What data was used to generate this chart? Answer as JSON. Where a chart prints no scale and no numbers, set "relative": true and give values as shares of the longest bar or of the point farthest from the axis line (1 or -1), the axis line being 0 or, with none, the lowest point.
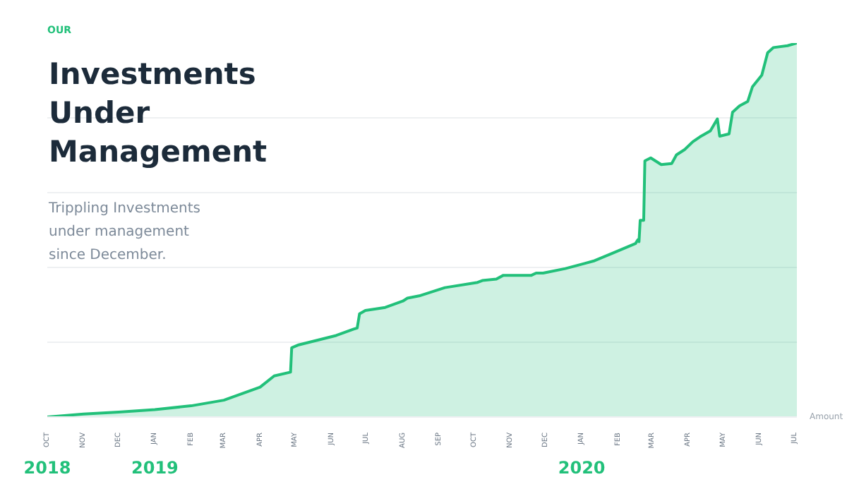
{
  "chart_data": {
    "type": "area",
    "title": "Investments Under Management",
    "subtitle": "Trippling Investments under management since December.",
    "ylabel": "Amount",
    "annotations": [
      "OUR",
      "2018",
      "2019",
      "2020"
    ],
    "relative": true,
    "grid": "y",
    "xlim": [
      "2018-10-01",
      "2020-07-03"
    ],
    "xticks": [
      {
        "value": "2018-10-01",
        "label": "OCT"
      },
      {
        "value": "2018-11-01",
        "label": "NOV"
      },
      {
        "value": "2018-12-01",
        "label": "DEC"
      },
      {
        "value": "2019-01-01",
        "label": "JAN"
      },
      {
        "value": "2019-02-01",
        "label": "FEB"
      },
      {
        "value": "2019-03-01",
        "label": "MAR"
      },
      {
        "value": "2019-04-01",
        "label": "APR"
      },
      {
        "value": "2019-05-01",
        "label": "MAY"
      },
      {
        "value": "2019-06-01",
        "label": "JUN"
      },
      {
        "value": "2019-07-01",
        "label": "JUL"
      },
      {
        "value": "2019-08-01",
        "label": "AUG"
      },
      {
        "value": "2019-09-01",
        "label": "SEP"
      },
      {
        "value": "2019-10-01",
        "label": "OCT"
      },
      {
        "value": "2019-11-01",
        "label": "NOV"
      },
      {
        "value": "2019-12-01",
        "label": "DEC"
      },
      {
        "value": "2020-01-01",
        "label": "JAN"
      },
      {
        "value": "2020-02-01",
        "label": "FEB"
      },
      {
        "value": "2020-03-01",
        "label": "MAR"
      },
      {
        "value": "2020-04-01",
        "label": "APR"
      },
      {
        "value": "2020-05-01",
        "label": "MAY"
      },
      {
        "value": "2020-06-01",
        "label": "JUN"
      },
      {
        "value": "2020-07-01",
        "label": "JUL"
      }
    ],
    "x": [
      "2018-10-01",
      "2018-11-01",
      "2018-12-01",
      "2019-01-01",
      "2019-02-01",
      "2019-03-01",
      "2019-04-01",
      "2019-04-13",
      "2019-04-27",
      "2019-04-28",
      "2019-05-04",
      "2019-06-05",
      "2019-06-20",
      "2019-06-23",
      "2019-06-25",
      "2019-06-30",
      "2019-07-17",
      "2019-08-01",
      "2019-08-05",
      "2019-08-15",
      "2019-09-06",
      "2019-10-04",
      "2019-10-08",
      "2019-10-20",
      "2019-10-26",
      "2019-11-19",
      "2019-11-23",
      "2019-11-29",
      "2019-12-18",
      "2020-01-04",
      "2020-01-12",
      "2020-01-28",
      "2020-02-16",
      "2020-02-18",
      "2020-02-19",
      "2020-02-20",
      "2020-02-23",
      "2020-02-24",
      "2020-02-29",
      "2020-03-09",
      "2020-03-18",
      "2020-03-22",
      "2020-03-29",
      "2020-04-05",
      "2020-04-11",
      "2020-04-20",
      "2020-04-26",
      "2020-04-28",
      "2020-05-06",
      "2020-05-09",
      "2020-05-15",
      "2020-05-22",
      "2020-05-26",
      "2020-06-03",
      "2020-06-08",
      "2020-06-13",
      "2020-06-25",
      "2020-07-03"
    ],
    "series": [
      {
        "color": "#22c07a",
        "values": [
          0,
          0.008,
          0.013,
          0.02,
          0.03,
          0.045,
          0.08,
          0.11,
          0.12,
          0.185,
          0.193,
          0.218,
          0.235,
          0.238,
          0.276,
          0.285,
          0.293,
          0.31,
          0.318,
          0.324,
          0.346,
          0.36,
          0.365,
          0.369,
          0.379,
          0.379,
          0.385,
          0.385,
          0.397,
          0.411,
          0.418,
          0.439,
          0.464,
          0.474,
          0.469,
          0.526,
          0.526,
          0.685,
          0.693,
          0.675,
          0.678,
          0.701,
          0.715,
          0.736,
          0.749,
          0.765,
          0.797,
          0.751,
          0.757,
          0.815,
          0.832,
          0.844,
          0.883,
          0.914,
          0.974,
          0.988,
          0.993,
          1.0
        ]
      }
    ]
  }
}
